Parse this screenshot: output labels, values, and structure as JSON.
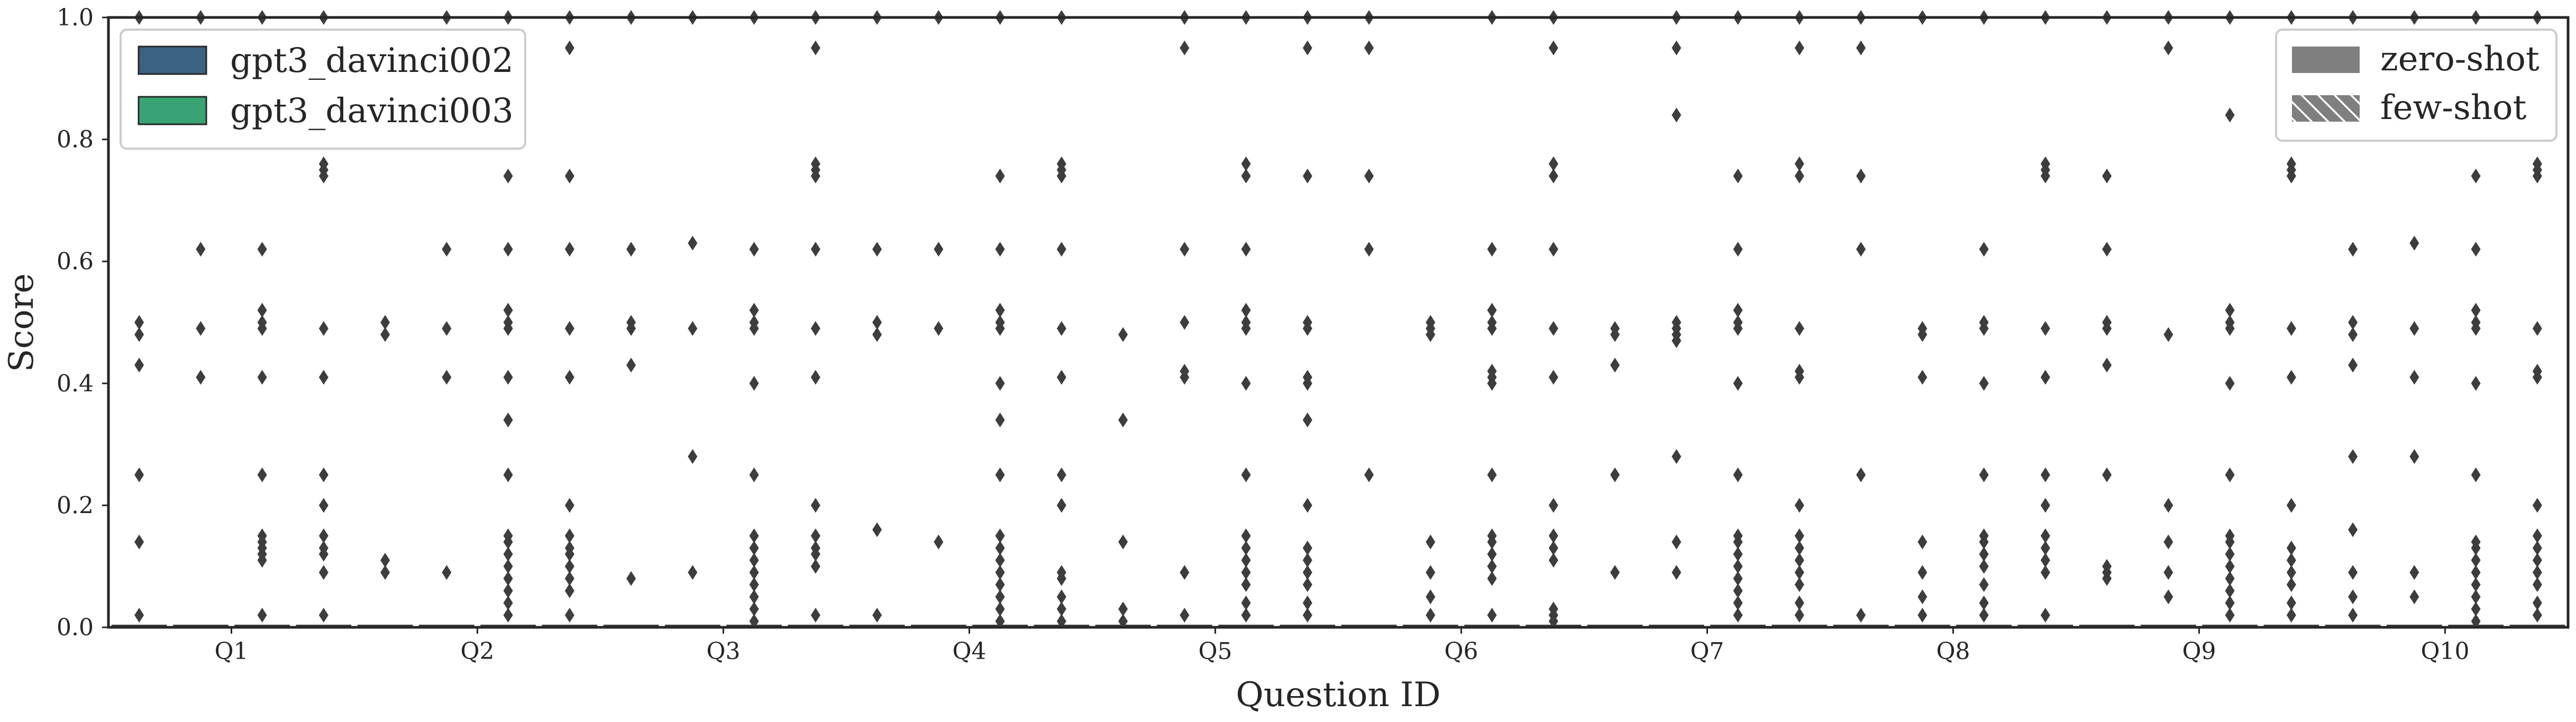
{
  "chart_data": {
    "type": "boxplot",
    "xlabel": "Question ID",
    "ylabel": "Score",
    "ylim": [
      0,
      1.0
    ],
    "yticks": [
      "0.0",
      "0.2",
      "0.4",
      "0.6",
      "0.8",
      "1.0"
    ],
    "categories": [
      "Q1",
      "Q2",
      "Q3",
      "Q4",
      "Q5",
      "Q6",
      "Q7",
      "Q8",
      "Q9",
      "Q10"
    ],
    "grid": false,
    "series": [
      {
        "name": "gpt3_davinci002",
        "color": "#3b6281"
      },
      {
        "name": "gpt3_davinci003",
        "color": "#3aa373"
      }
    ],
    "settings": [
      {
        "name": "zero-shot",
        "pattern": "solid"
      },
      {
        "name": "few-shot",
        "pattern": "hatched"
      }
    ],
    "legend_models_position": "top-left",
    "legend_settings_position": "top-right",
    "groups": [
      {
        "category": "Q1",
        "outliers": [
          [
            0.25,
            0.14,
            0.02,
            1.0,
            0.43,
            0.48,
            0.5
          ],
          [
            0.62,
            0.49,
            0.41,
            1.0
          ],
          [
            0.62,
            0.52,
            0.5,
            0.49,
            0.41,
            0.25,
            0.15,
            0.14,
            0.13,
            0.12,
            0.11,
            0.02,
            1.0
          ],
          [
            1.0,
            0.76,
            0.75,
            0.74,
            0.49,
            0.41,
            0.25,
            0.2,
            0.15,
            0.13,
            0.12,
            0.09,
            0.02
          ]
        ]
      },
      {
        "category": "Q2",
        "outliers": [
          [
            0.5,
            0.48,
            0.11,
            0.09
          ],
          [
            1.0,
            0.62,
            0.49,
            0.41,
            0.09
          ],
          [
            1.0,
            0.74,
            0.62,
            0.52,
            0.5,
            0.49,
            0.41,
            0.34,
            0.25,
            0.15,
            0.14,
            0.12,
            0.1,
            0.08,
            0.06,
            0.04,
            0.02
          ],
          [
            1.0,
            0.95,
            0.74,
            0.62,
            0.49,
            0.41,
            0.2,
            0.15,
            0.13,
            0.12,
            0.1,
            0.08,
            0.06,
            0.02
          ]
        ]
      },
      {
        "category": "Q3",
        "outliers": [
          [
            1.0,
            0.62,
            0.5,
            0.49,
            0.43,
            0.08
          ],
          [
            1.0,
            0.63,
            0.49,
            0.28,
            0.09
          ],
          [
            1.0,
            0.62,
            0.52,
            0.5,
            0.49,
            0.4,
            0.25,
            0.15,
            0.13,
            0.11,
            0.09,
            0.07,
            0.05,
            0.03,
            0.01
          ],
          [
            1.0,
            0.95,
            0.76,
            0.75,
            0.74,
            0.62,
            0.49,
            0.41,
            0.2,
            0.15,
            0.13,
            0.12,
            0.1,
            0.02
          ]
        ]
      },
      {
        "category": "Q4",
        "outliers": [
          [
            1.0,
            0.62,
            0.5,
            0.48,
            0.16,
            0.02
          ],
          [
            1.0,
            0.62,
            0.49,
            0.14
          ],
          [
            1.0,
            0.74,
            0.62,
            0.52,
            0.5,
            0.49,
            0.4,
            0.34,
            0.25,
            0.15,
            0.13,
            0.11,
            0.09,
            0.07,
            0.05,
            0.03,
            0.01
          ],
          [
            1.0,
            0.76,
            0.75,
            0.74,
            0.62,
            0.49,
            0.41,
            0.25,
            0.2,
            0.09,
            0.08,
            0.05,
            0.03,
            0.01
          ]
        ]
      },
      {
        "category": "Q5",
        "outliers": [
          [
            0.48,
            0.34,
            0.14,
            0.03,
            0.01
          ],
          [
            1.0,
            0.95,
            0.62,
            0.5,
            0.42,
            0.41,
            0.09,
            0.02
          ],
          [
            1.0,
            0.76,
            0.74,
            0.62,
            0.52,
            0.5,
            0.49,
            0.4,
            0.25,
            0.15,
            0.13,
            0.11,
            0.09,
            0.07,
            0.04,
            0.02
          ],
          [
            1.0,
            0.95,
            0.74,
            0.5,
            0.49,
            0.41,
            0.4,
            0.34,
            0.2,
            0.13,
            0.11,
            0.09,
            0.07,
            0.04,
            0.02
          ]
        ]
      },
      {
        "category": "Q6",
        "outliers": [
          [
            1.0,
            0.95,
            0.74,
            0.62,
            0.25
          ],
          [
            0.5,
            0.49,
            0.48,
            0.14,
            0.09,
            0.05,
            0.02
          ],
          [
            1.0,
            0.62,
            0.52,
            0.5,
            0.49,
            0.42,
            0.41,
            0.4,
            0.25,
            0.15,
            0.14,
            0.12,
            0.1,
            0.08,
            0.02
          ],
          [
            1.0,
            0.95,
            0.76,
            0.74,
            0.62,
            0.49,
            0.41,
            0.2,
            0.15,
            0.13,
            0.11,
            0.03,
            0.02,
            0.01
          ]
        ]
      },
      {
        "category": "Q7",
        "outliers": [
          [
            0.49,
            0.48,
            0.43,
            0.25,
            0.09
          ],
          [
            1.0,
            0.95,
            0.84,
            0.5,
            0.49,
            0.48,
            0.47,
            0.28,
            0.14,
            0.09
          ],
          [
            1.0,
            0.74,
            0.62,
            0.52,
            0.5,
            0.49,
            0.4,
            0.25,
            0.15,
            0.14,
            0.12,
            0.1,
            0.08,
            0.06,
            0.04,
            0.02
          ],
          [
            1.0,
            0.95,
            0.76,
            0.74,
            0.49,
            0.42,
            0.41,
            0.2,
            0.15,
            0.13,
            0.11,
            0.09,
            0.07,
            0.04,
            0.02
          ]
        ]
      },
      {
        "category": "Q8",
        "outliers": [
          [
            1.0,
            0.95,
            0.74,
            0.62,
            0.25,
            0.02
          ],
          [
            1.0,
            0.49,
            0.48,
            0.41,
            0.14,
            0.09,
            0.05,
            0.02
          ],
          [
            1.0,
            0.62,
            0.5,
            0.49,
            0.4,
            0.25,
            0.15,
            0.14,
            0.12,
            0.1,
            0.07,
            0.04,
            0.02
          ],
          [
            1.0,
            0.76,
            0.75,
            0.74,
            0.49,
            0.41,
            0.25,
            0.2,
            0.15,
            0.13,
            0.11,
            0.09,
            0.02
          ]
        ]
      },
      {
        "category": "Q9",
        "outliers": [
          [
            1.0,
            0.74,
            0.62,
            0.5,
            0.49,
            0.43,
            0.25,
            0.1,
            0.09,
            0.08
          ],
          [
            1.0,
            0.95,
            0.48,
            0.2,
            0.14,
            0.09,
            0.05
          ],
          [
            1.0,
            0.84,
            0.52,
            0.5,
            0.49,
            0.4,
            0.25,
            0.15,
            0.14,
            0.12,
            0.1,
            0.08,
            0.06,
            0.04,
            0.02
          ],
          [
            1.0,
            0.76,
            0.75,
            0.74,
            0.49,
            0.41,
            0.2,
            0.13,
            0.11,
            0.09,
            0.07,
            0.04,
            0.02
          ]
        ]
      },
      {
        "category": "Q10",
        "outliers": [
          [
            1.0,
            0.62,
            0.5,
            0.48,
            0.43,
            0.28,
            0.16,
            0.09,
            0.05,
            0.02
          ],
          [
            1.0,
            0.63,
            0.49,
            0.41,
            0.28,
            0.09,
            0.05
          ],
          [
            1.0,
            0.74,
            0.62,
            0.52,
            0.5,
            0.49,
            0.4,
            0.25,
            0.14,
            0.13,
            0.11,
            0.09,
            0.07,
            0.05,
            0.03,
            0.01
          ],
          [
            1.0,
            0.76,
            0.75,
            0.74,
            0.49,
            0.42,
            0.41,
            0.2,
            0.15,
            0.13,
            0.11,
            0.09,
            0.07,
            0.04,
            0.02
          ]
        ]
      }
    ]
  }
}
